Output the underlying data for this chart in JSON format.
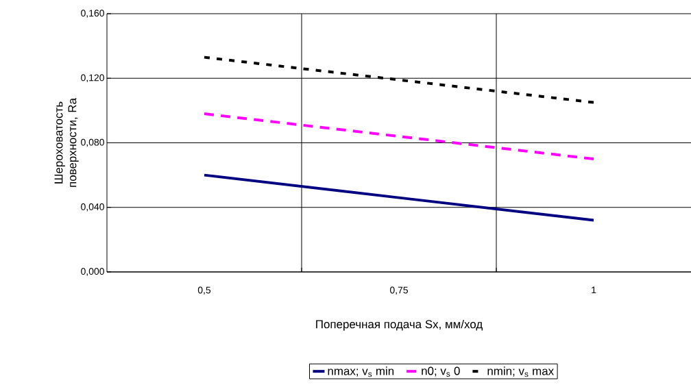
{
  "chart_data": {
    "type": "line",
    "xlabel": "Поперечная подача Sx, мм/ход",
    "ylabel": "Шероховатость поверхности, Ra",
    "categories": [
      "0,5",
      "0,75",
      "1"
    ],
    "series": [
      {
        "name": "nmax; v$_{s}$ min",
        "color": "#000080",
        "line_style": "solid",
        "values": [
          0.06,
          0.046,
          0.032
        ]
      },
      {
        "name": "n0; v$_{s}$ 0",
        "color": "#ff00ff",
        "line_style": "dashed",
        "values": [
          0.098,
          0.084,
          0.07
        ]
      },
      {
        "name": "nmin; v$_{s}$ max",
        "color": "#000000",
        "line_style": "dotted",
        "values": [
          0.133,
          0.119,
          0.105
        ]
      }
    ],
    "ylim": [
      0,
      0.16
    ],
    "yticks": [
      {
        "value": 0,
        "label": "0,000"
      },
      {
        "value": 0.04,
        "label": "0,040"
      },
      {
        "value": 0.08,
        "label": "0,080"
      },
      {
        "value": 0.12,
        "label": "0,120"
      },
      {
        "value": 0.16,
        "label": "0,160"
      }
    ],
    "grid": true,
    "legend": "bottom",
    "marker": "none"
  }
}
